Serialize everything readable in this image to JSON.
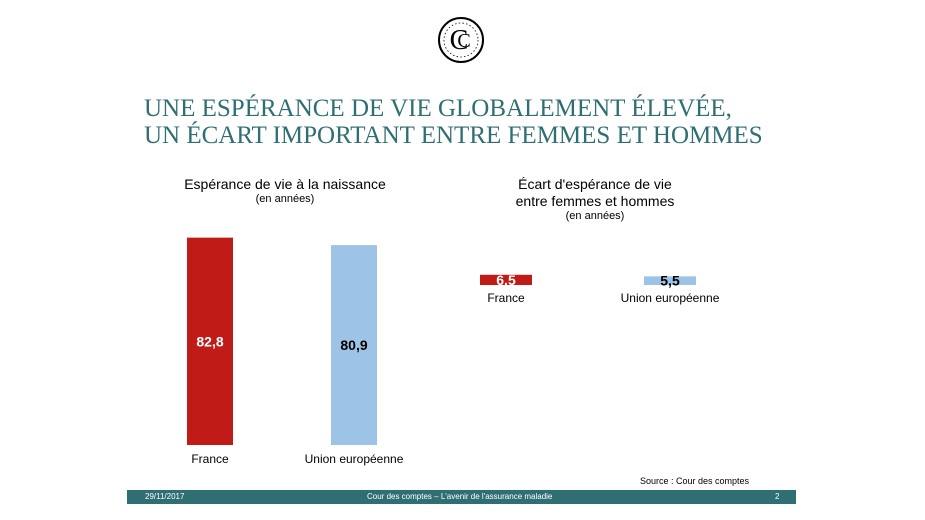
{
  "title_lines": [
    "UNE ESPÉRANCE DE VIE GLOBALEMENT ÉLEVÉE,",
    "UN ÉCART IMPORTANT ENTRE FEMMES ET HOMMES"
  ],
  "colors": {
    "title": "#2f6f73",
    "france": "#c11b17",
    "ue": "#9dc3e6",
    "footer": "#2f6f73"
  },
  "chart_data": [
    {
      "type": "bar",
      "title": "Espérance de vie à la naissance",
      "subtitle": "(en années)",
      "categories": [
        "France",
        "Union européenne"
      ],
      "values": [
        82.8,
        80.9
      ],
      "value_labels": [
        "82,8",
        "80,9"
      ],
      "colors": [
        "#c11b17",
        "#9dc3e6"
      ],
      "ylim": [
        30,
        85
      ]
    },
    {
      "type": "bar",
      "title_lines": [
        "Écart d'espérance de vie",
        "entre femmes et hommes"
      ],
      "subtitle": "(en années)",
      "categories": [
        "France",
        "Union européenne"
      ],
      "values": [
        6.5,
        5.5
      ],
      "value_labels": [
        "6,5",
        "5,5"
      ],
      "colors": [
        "#c11b17",
        "#9dc3e6"
      ],
      "ylim": [
        0,
        35
      ]
    }
  ],
  "source": "Source : Cour des comptes",
  "footer": {
    "date": "29/11/2017",
    "center": "Cour des comptes – L'avenir de l'assurance maladie",
    "page": "2"
  }
}
